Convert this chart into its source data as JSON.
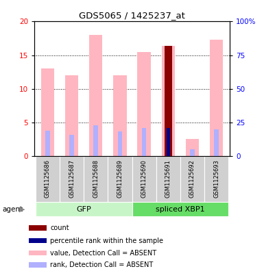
{
  "title": "GDS5065 / 1425237_at",
  "samples": [
    "GSM1125686",
    "GSM1125687",
    "GSM1125688",
    "GSM1125689",
    "GSM1125690",
    "GSM1125691",
    "GSM1125692",
    "GSM1125693"
  ],
  "pink_values": [
    13.0,
    12.0,
    18.0,
    12.0,
    15.5,
    16.4,
    2.5,
    17.3
  ],
  "pink_bar_color": "#ffb6c1",
  "blue_rank_values": [
    3.8,
    3.2,
    4.6,
    3.7,
    4.2,
    4.2,
    1.0,
    4.0
  ],
  "blue_rank_color": "#b0b0ff",
  "count_values": [
    0,
    0,
    0,
    0,
    0,
    16.4,
    0,
    0
  ],
  "count_color": "#8b0000",
  "percentile_values": [
    0,
    0,
    0,
    0,
    0,
    4.2,
    0,
    0
  ],
  "percentile_color": "#00008b",
  "ylim_left": [
    0,
    20
  ],
  "ylim_right": [
    0,
    100
  ],
  "left_ticks": [
    0,
    5,
    10,
    15,
    20
  ],
  "right_ticks": [
    0,
    25,
    50,
    75,
    100
  ],
  "right_tick_labels": [
    "0",
    "25",
    "50",
    "75",
    "100%"
  ],
  "bar_width": 0.55,
  "agent_label": "agent",
  "group_ranges": [
    {
      "label": "GFP",
      "start": 0,
      "end": 3,
      "light_color": "#c8f5c8",
      "dark_color": "#c8f5c8"
    },
    {
      "label": "spliced XBP1",
      "start": 4,
      "end": 7,
      "light_color": "#66dd66",
      "dark_color": "#66dd66"
    }
  ],
  "legend_items": [
    {
      "label": "count",
      "color": "#8b0000"
    },
    {
      "label": "percentile rank within the sample",
      "color": "#00008b"
    },
    {
      "label": "value, Detection Call = ABSENT",
      "color": "#ffb6c1"
    },
    {
      "label": "rank, Detection Call = ABSENT",
      "color": "#b0b0ff"
    }
  ]
}
